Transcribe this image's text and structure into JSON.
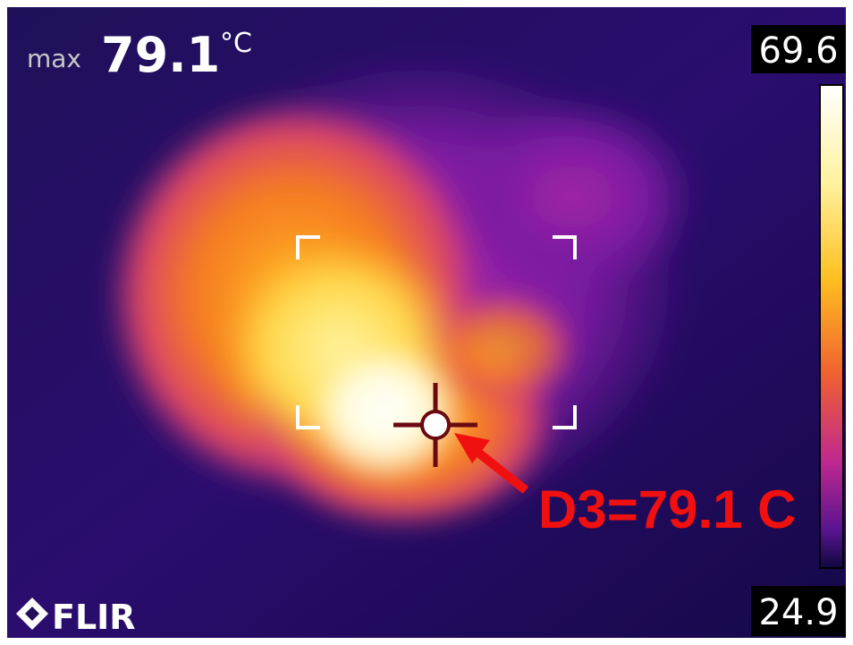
{
  "overlay": {
    "max_label": "max",
    "max_value": "79.1",
    "unit": "°C",
    "scale_top": "69.6",
    "scale_bottom": "24.9",
    "logo": "FLIR",
    "annotation": "D3=79.1 C"
  }
}
